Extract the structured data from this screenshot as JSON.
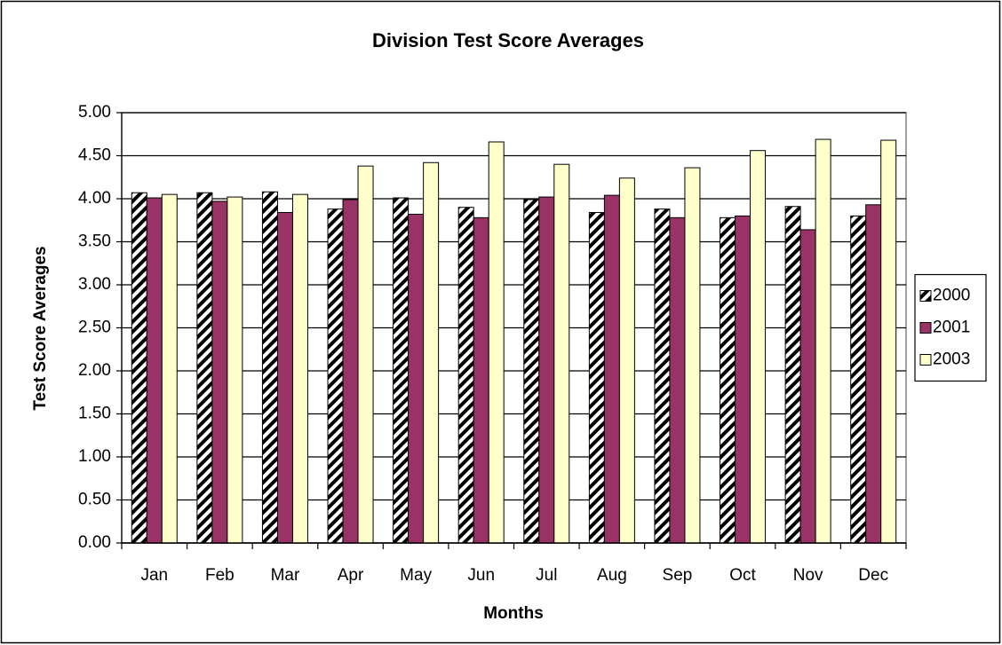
{
  "chart_data": {
    "type": "bar",
    "title": "Division Test Score Averages",
    "x_label": "Months",
    "y_label": "Test Score Averages",
    "categories": [
      "Jan",
      "Feb",
      "Mar",
      "Apr",
      "May",
      "Jun",
      "Jul",
      "Aug",
      "Sep",
      "Oct",
      "Nov",
      "Dec"
    ],
    "series": [
      {
        "name": "2000",
        "color": "#000000",
        "pattern": "hatch",
        "values": [
          4.07,
          4.07,
          4.08,
          3.88,
          4.01,
          3.9,
          3.99,
          3.84,
          3.88,
          3.78,
          3.91,
          3.8
        ]
      },
      {
        "name": "2001",
        "color": "#993366",
        "values": [
          4.01,
          3.97,
          3.84,
          3.99,
          3.82,
          3.78,
          4.02,
          4.04,
          3.78,
          3.8,
          3.64,
          3.93
        ]
      },
      {
        "name": "2003",
        "color": "#ffffcc",
        "values": [
          4.05,
          4.02,
          4.05,
          4.38,
          4.42,
          4.66,
          4.4,
          4.24,
          4.36,
          4.56,
          4.69,
          4.68
        ]
      }
    ],
    "ylim": [
      0,
      5
    ],
    "yticks": [
      {
        "value": 0,
        "label": "0.00"
      },
      {
        "value": 0.5,
        "label": "0.50"
      },
      {
        "value": 1,
        "label": "1.00"
      },
      {
        "value": 1.5,
        "label": "1.50"
      },
      {
        "value": 2,
        "label": "2.00"
      },
      {
        "value": 2.5,
        "label": "2.50"
      },
      {
        "value": 3,
        "label": "3.00"
      },
      {
        "value": 3.5,
        "label": "3.50"
      },
      {
        "value": 4,
        "label": "4.00"
      },
      {
        "value": 4.5,
        "label": "4.50"
      },
      {
        "value": 5,
        "label": "5.00"
      }
    ],
    "grid": true,
    "legend_position": "right"
  }
}
